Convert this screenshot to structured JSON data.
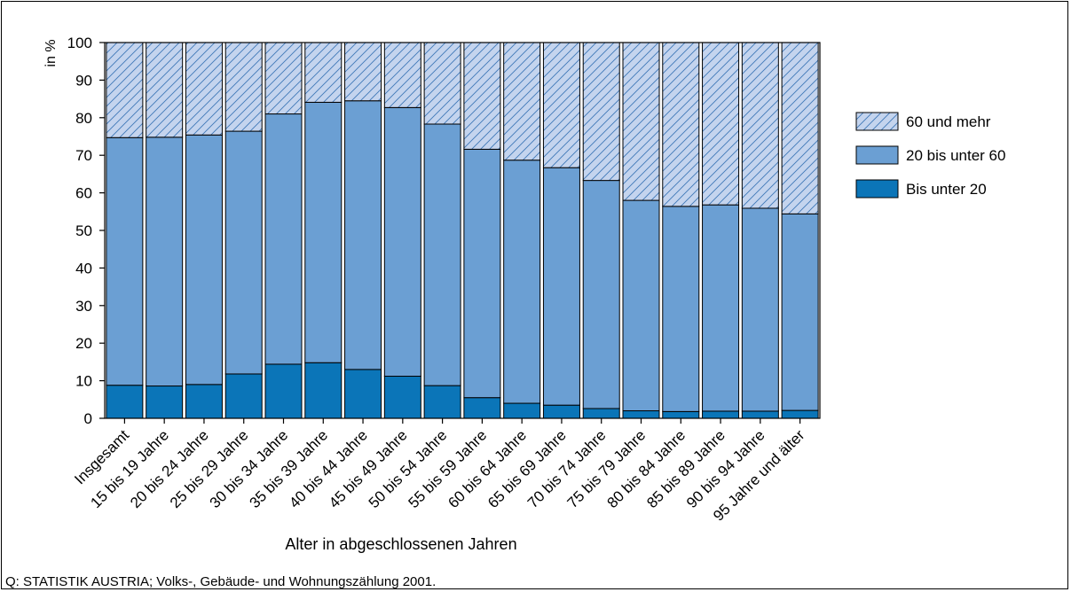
{
  "source_note": "Q: STATISTIK AUSTRIA; Volks-, Gebäude- und Wohnungszählung 2001.",
  "colors": {
    "bis_unter_20": "#0b75b8",
    "20_bis_unter_60": "#6b9fd3",
    "60_und_mehr": "#c4d4ee",
    "hatch": "#3f78b8"
  },
  "chart_data": {
    "type": "bar",
    "stacked": true,
    "title": "",
    "xlabel": "Alter in abgeschlossenen Jahren",
    "ylabel": "in %",
    "ylim": [
      0,
      100
    ],
    "yticks": [
      0,
      10,
      20,
      30,
      40,
      50,
      60,
      70,
      80,
      90,
      100
    ],
    "legend_position": "right",
    "categories": [
      "Insgesamt",
      "15 bis 19 Jahre",
      "20 bis 24 Jahre",
      "25 bis 29 Jahre",
      "30 bis 34 Jahre",
      "35 bis 39 Jahre",
      "40 bis 44 Jahre",
      "45 bis 49 Jahre",
      "50 bis 54 Jahre",
      "55 bis 59 Jahre",
      "60 bis 64 Jahre",
      "65 bis 69 Jahre",
      "70 bis 74 Jahre",
      "75 bis 79 Jahre",
      "80 bis 84 Jahre",
      "85 bis 89 Jahre",
      "90 bis 94 Jahre",
      "95 Jahre und älter"
    ],
    "series": [
      {
        "name": "Bis unter 20",
        "color": "#0b75b8",
        "pattern": "solid",
        "values": [
          8.8,
          8.6,
          9.0,
          11.8,
          14.4,
          14.8,
          13.0,
          11.2,
          8.7,
          5.5,
          4.0,
          3.5,
          2.6,
          2.0,
          1.8,
          1.9,
          1.9,
          2.1
        ]
      },
      {
        "name": "20 bis unter 60",
        "color": "#6b9fd3",
        "pattern": "solid",
        "values": [
          65.9,
          66.2,
          66.4,
          64.6,
          66.6,
          69.3,
          71.5,
          71.5,
          69.6,
          66.1,
          64.7,
          63.2,
          60.7,
          56.0,
          54.6,
          54.9,
          54.0,
          52.3
        ]
      },
      {
        "name": "60 und mehr",
        "color": "#c4d4ee",
        "pattern": "hatched",
        "values": [
          25.3,
          25.2,
          24.6,
          23.6,
          19.0,
          15.9,
          15.5,
          17.3,
          21.7,
          28.4,
          31.3,
          33.3,
          36.7,
          42.0,
          43.6,
          43.2,
          44.1,
          45.6
        ]
      }
    ],
    "legend_order": [
      "60 und mehr",
      "20 bis unter 60",
      "Bis unter 20"
    ]
  }
}
